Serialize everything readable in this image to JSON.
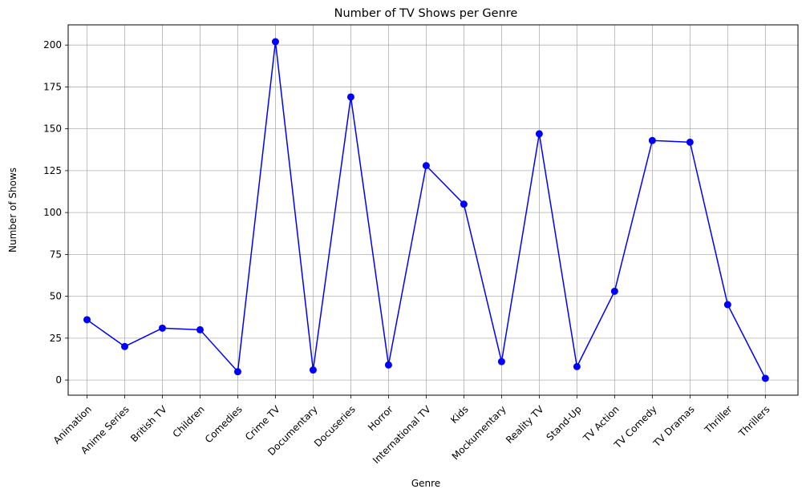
{
  "chart_data": {
    "type": "line",
    "title": "Number of TV Shows per Genre",
    "xlabel": "Genre",
    "ylabel": "Number of Shows",
    "categories": [
      "Animation",
      "Anime Series",
      "British TV",
      "Children",
      "Comedies",
      "Crime TV",
      "Documentary",
      "Docuseries",
      "Horror",
      "International TV",
      "Kids",
      "Mockumentary",
      "Reality TV",
      "Stand-Up",
      "TV Action",
      "TV Comedy",
      "TV Dramas",
      "Thriller",
      "Thrillers"
    ],
    "values": [
      36,
      20,
      31,
      30,
      5,
      202,
      6,
      169,
      9,
      128,
      105,
      11,
      147,
      8,
      53,
      143,
      142,
      45,
      1
    ],
    "ylim": [
      -9.05,
      212.05
    ],
    "yticks": [
      0,
      25,
      50,
      75,
      100,
      125,
      150,
      175,
      200
    ],
    "grid": true,
    "line_color": "#0000ff",
    "marker_color": "#0000ff",
    "marker": "circle"
  }
}
